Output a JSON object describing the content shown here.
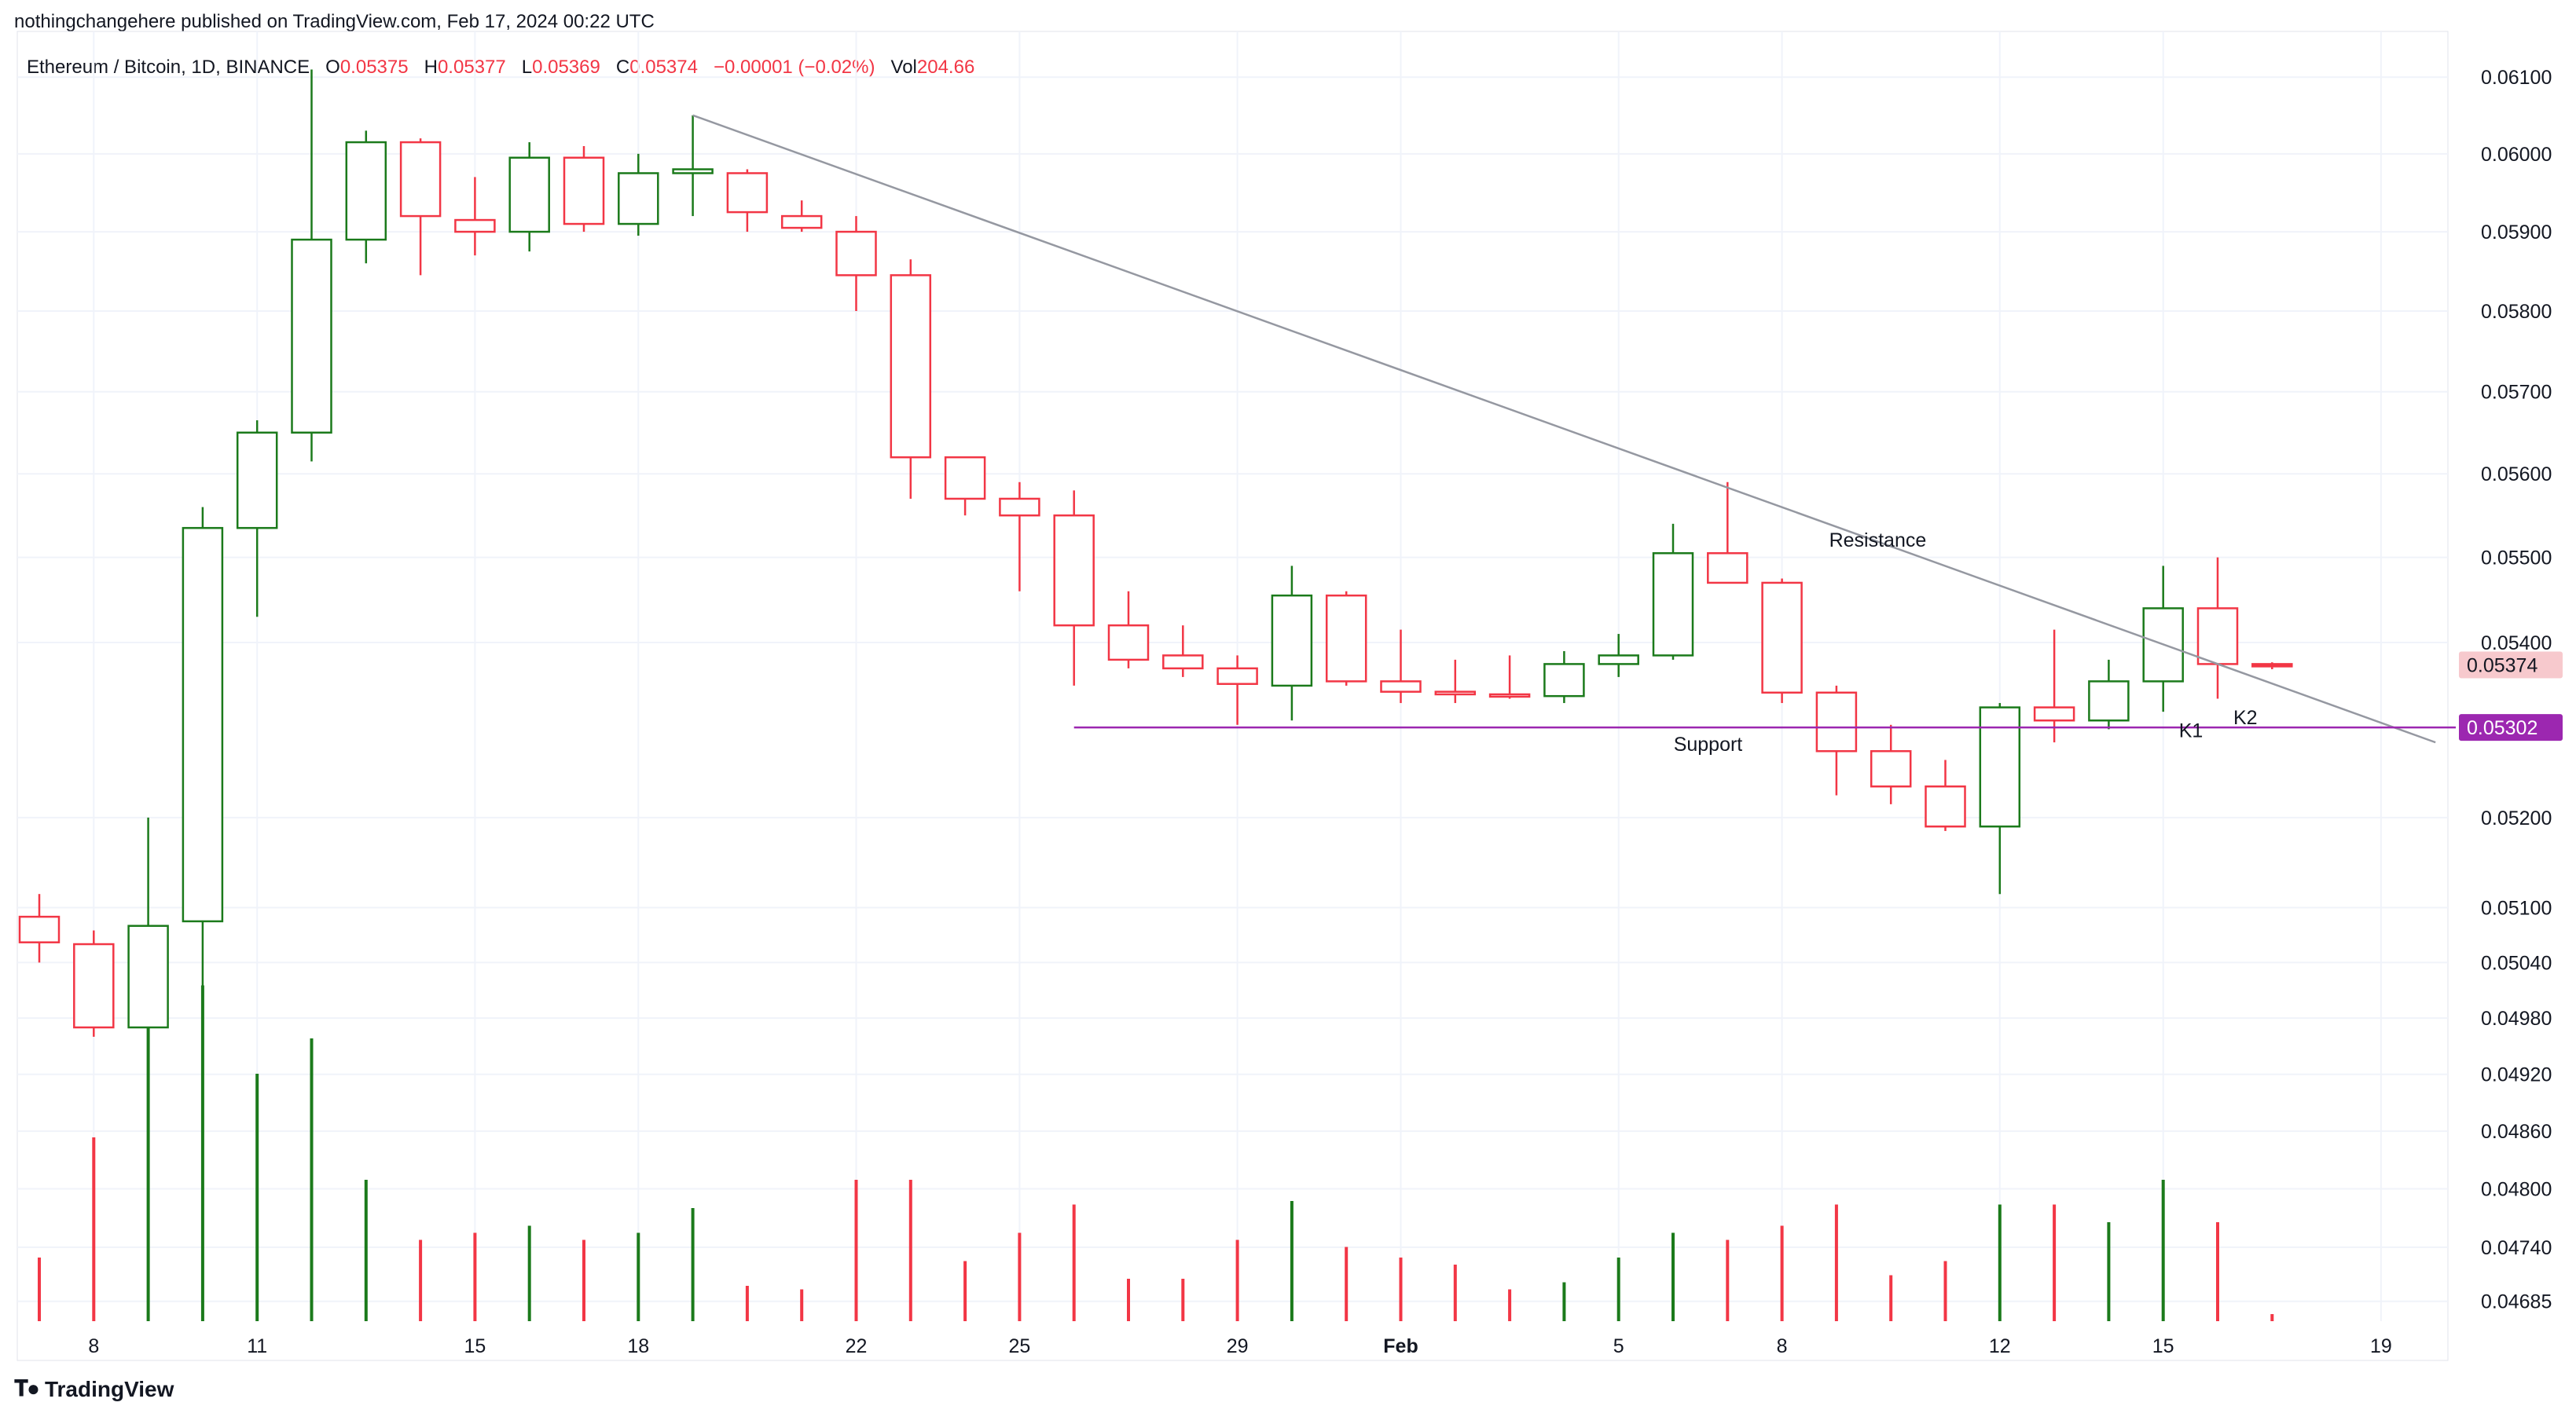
{
  "header": {
    "published_line": "nothingchangehere published on TradingView.com, Feb 17, 2024 00:22 UTC"
  },
  "legend": {
    "symbol": "Ethereum / Bitcoin, 1D, BINANCE",
    "o_label": "O",
    "o_value": "0.05375",
    "h_label": "H",
    "h_value": "0.05377",
    "l_label": "L",
    "l_value": "0.05369",
    "c_label": "C",
    "c_value": "0.05374",
    "change": "−0.00001 (−0.02%)",
    "vol_label": "Vol",
    "vol_value": "204.66"
  },
  "footer": {
    "brand": "TradingView",
    "logo_icon": "tradingview-logo-icon"
  },
  "colors": {
    "up": "#1b7a1b",
    "down": "#f23645",
    "grid": "#f0f3fa",
    "support": "#9c27b0",
    "resistance": "#9598a1",
    "last_price_bg": "#f7c9cd",
    "support_label_bg": "#9c27b0"
  },
  "chart_data": {
    "type": "candlestick",
    "symbol": "ETHBTC",
    "interval": "1D",
    "y_scale": "log",
    "ylim": [
      0.04665,
      0.0615
    ],
    "price_ticks": [
      "0.06100",
      "0.06000",
      "0.05900",
      "0.05800",
      "0.05700",
      "0.05600",
      "0.05500",
      "0.05400",
      "0.05200",
      "0.05100",
      "0.05040",
      "0.04980",
      "0.04920",
      "0.04860",
      "0.04800",
      "0.04740",
      "0.04685"
    ],
    "x_ticks": [
      {
        "date": "2024-01-08",
        "label": "8"
      },
      {
        "date": "2024-01-11",
        "label": "11"
      },
      {
        "date": "2024-01-15",
        "label": "15"
      },
      {
        "date": "2024-01-18",
        "label": "18"
      },
      {
        "date": "2024-01-22",
        "label": "22"
      },
      {
        "date": "2024-01-25",
        "label": "25"
      },
      {
        "date": "2024-01-29",
        "label": "29"
      },
      {
        "date": "2024-02-01",
        "label": "Feb"
      },
      {
        "date": "2024-02-05",
        "label": "5"
      },
      {
        "date": "2024-02-08",
        "label": "8"
      },
      {
        "date": "2024-02-12",
        "label": "12"
      },
      {
        "date": "2024-02-15",
        "label": "15"
      },
      {
        "date": "2024-02-19",
        "label": "19"
      }
    ],
    "x_range": [
      "2024-01-07",
      "2024-02-21"
    ],
    "candles": [
      {
        "date": "2024-01-07",
        "o": 0.0509,
        "h": 0.05115,
        "l": 0.0504,
        "c": 0.05062
      },
      {
        "date": "2024-01-08",
        "o": 0.0506,
        "h": 0.05075,
        "l": 0.0496,
        "c": 0.0497
      },
      {
        "date": "2024-01-09",
        "o": 0.0497,
        "h": 0.052,
        "l": 0.04665,
        "c": 0.0508
      },
      {
        "date": "2024-01-10",
        "o": 0.05085,
        "h": 0.0556,
        "l": 0.04665,
        "c": 0.05535
      },
      {
        "date": "2024-01-11",
        "o": 0.05535,
        "h": 0.05665,
        "l": 0.0543,
        "c": 0.0565
      },
      {
        "date": "2024-01-12",
        "o": 0.0565,
        "h": 0.0611,
        "l": 0.05615,
        "c": 0.0589
      },
      {
        "date": "2024-01-13",
        "o": 0.0589,
        "h": 0.0603,
        "l": 0.0586,
        "c": 0.06015
      },
      {
        "date": "2024-01-14",
        "o": 0.06015,
        "h": 0.0602,
        "l": 0.05845,
        "c": 0.0592
      },
      {
        "date": "2024-01-15",
        "o": 0.05915,
        "h": 0.0597,
        "l": 0.0587,
        "c": 0.059
      },
      {
        "date": "2024-01-16",
        "o": 0.059,
        "h": 0.06015,
        "l": 0.05875,
        "c": 0.05995
      },
      {
        "date": "2024-01-17",
        "o": 0.05995,
        "h": 0.0601,
        "l": 0.059,
        "c": 0.0591
      },
      {
        "date": "2024-01-18",
        "o": 0.0591,
        "h": 0.06,
        "l": 0.05895,
        "c": 0.05975
      },
      {
        "date": "2024-01-19",
        "o": 0.05975,
        "h": 0.0605,
        "l": 0.0592,
        "c": 0.0598
      },
      {
        "date": "2024-01-20",
        "o": 0.05975,
        "h": 0.0598,
        "l": 0.059,
        "c": 0.05925
      },
      {
        "date": "2024-01-21",
        "o": 0.0592,
        "h": 0.0594,
        "l": 0.059,
        "c": 0.05905
      },
      {
        "date": "2024-01-22",
        "o": 0.059,
        "h": 0.0592,
        "l": 0.058,
        "c": 0.05845
      },
      {
        "date": "2024-01-23",
        "o": 0.05845,
        "h": 0.05865,
        "l": 0.0557,
        "c": 0.0562
      },
      {
        "date": "2024-01-24",
        "o": 0.0562,
        "h": 0.0562,
        "l": 0.0555,
        "c": 0.0557
      },
      {
        "date": "2024-01-25",
        "o": 0.0557,
        "h": 0.0559,
        "l": 0.0546,
        "c": 0.0555
      },
      {
        "date": "2024-01-26",
        "o": 0.0555,
        "h": 0.0558,
        "l": 0.0535,
        "c": 0.0542
      },
      {
        "date": "2024-01-27",
        "o": 0.0542,
        "h": 0.0546,
        "l": 0.0537,
        "c": 0.0538
      },
      {
        "date": "2024-01-28",
        "o": 0.05385,
        "h": 0.0542,
        "l": 0.0536,
        "c": 0.0537
      },
      {
        "date": "2024-01-29",
        "o": 0.0537,
        "h": 0.05385,
        "l": 0.05305,
        "c": 0.05352
      },
      {
        "date": "2024-01-30",
        "o": 0.0535,
        "h": 0.0549,
        "l": 0.0531,
        "c": 0.05455
      },
      {
        "date": "2024-01-31",
        "o": 0.05455,
        "h": 0.0546,
        "l": 0.0535,
        "c": 0.05355
      },
      {
        "date": "2024-02-01",
        "o": 0.05355,
        "h": 0.05415,
        "l": 0.0533,
        "c": 0.05343
      },
      {
        "date": "2024-02-02",
        "o": 0.05343,
        "h": 0.0538,
        "l": 0.0533,
        "c": 0.0534
      },
      {
        "date": "2024-02-03",
        "o": 0.0534,
        "h": 0.05385,
        "l": 0.05335,
        "c": 0.05338
      },
      {
        "date": "2024-02-04",
        "o": 0.05338,
        "h": 0.0539,
        "l": 0.0533,
        "c": 0.05375
      },
      {
        "date": "2024-02-05",
        "o": 0.05375,
        "h": 0.0541,
        "l": 0.0536,
        "c": 0.05385
      },
      {
        "date": "2024-02-06",
        "o": 0.05385,
        "h": 0.0554,
        "l": 0.0538,
        "c": 0.05505
      },
      {
        "date": "2024-02-07",
        "o": 0.05505,
        "h": 0.0559,
        "l": 0.0547,
        "c": 0.0547
      },
      {
        "date": "2024-02-08",
        "o": 0.0547,
        "h": 0.05475,
        "l": 0.0533,
        "c": 0.05342
      },
      {
        "date": "2024-02-09",
        "o": 0.05342,
        "h": 0.0535,
        "l": 0.05225,
        "c": 0.05275
      },
      {
        "date": "2024-02-10",
        "o": 0.05275,
        "h": 0.05305,
        "l": 0.05215,
        "c": 0.05235
      },
      {
        "date": "2024-02-11",
        "o": 0.05235,
        "h": 0.05265,
        "l": 0.05185,
        "c": 0.0519
      },
      {
        "date": "2024-02-12",
        "o": 0.0519,
        "h": 0.0533,
        "l": 0.05115,
        "c": 0.05325
      },
      {
        "date": "2024-02-13",
        "o": 0.05325,
        "h": 0.05415,
        "l": 0.05285,
        "c": 0.0531
      },
      {
        "date": "2024-02-14",
        "o": 0.0531,
        "h": 0.0538,
        "l": 0.053,
        "c": 0.05355
      },
      {
        "date": "2024-02-15",
        "o": 0.05355,
        "h": 0.0549,
        "l": 0.0532,
        "c": 0.0544
      },
      {
        "date": "2024-02-16",
        "o": 0.0544,
        "h": 0.055,
        "l": 0.05335,
        "c": 0.05375
      },
      {
        "date": "2024-02-17",
        "o": 0.05375,
        "h": 0.05377,
        "l": 0.05369,
        "c": 0.05374
      }
    ],
    "volume_relative": [
      0.18,
      0.52,
      0.95,
      0.95,
      0.7,
      0.8,
      0.4,
      0.23,
      0.25,
      0.27,
      0.23,
      0.25,
      0.32,
      0.1,
      0.09,
      0.4,
      0.4,
      0.17,
      0.25,
      0.33,
      0.12,
      0.12,
      0.23,
      0.34,
      0.21,
      0.18,
      0.16,
      0.09,
      0.11,
      0.18,
      0.25,
      0.23,
      0.27,
      0.33,
      0.13,
      0.17,
      0.33,
      0.33,
      0.28,
      0.4,
      0.28,
      0.02
    ],
    "annotations": [
      {
        "type": "trendline",
        "label": "Resistance",
        "from": {
          "date": "2024-01-19",
          "price": 0.0605
        },
        "to": {
          "date": "2024-02-20",
          "price": 0.05285
        },
        "label_at": {
          "date": "2024-02-08",
          "price": 0.0552
        }
      },
      {
        "type": "hline",
        "label": "Support",
        "price": 0.05302,
        "from_date": "2024-01-26",
        "label_at": {
          "date": "2024-02-05",
          "price": 0.05302
        }
      },
      {
        "type": "text",
        "label": "K1",
        "date": "2024-02-15",
        "price": 0.05325
      },
      {
        "type": "text",
        "label": "K2",
        "date": "2024-02-16",
        "price": 0.0534
      }
    ],
    "price_labels": [
      {
        "value": "0.05374",
        "kind": "last"
      },
      {
        "value": "0.05302",
        "kind": "support"
      }
    ]
  }
}
